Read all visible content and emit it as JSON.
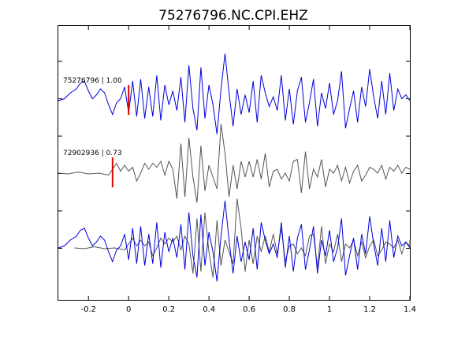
{
  "chart_data": {
    "type": "line",
    "title": "75276796.NC.CPI.EHZ",
    "xlabel": "",
    "ylabel": "",
    "xlim": [
      -0.35,
      1.4
    ],
    "xticks": [
      "-0.2",
      "0",
      "0.2",
      "0.4",
      "0.6",
      "0.8",
      "1",
      "1.2",
      "1.4"
    ],
    "xtick_values": [
      -0.2,
      0,
      0.2,
      0.4,
      0.6,
      0.8,
      1.0,
      1.2,
      1.4
    ],
    "ytick_count": 6,
    "grid": false,
    "colors": {
      "primary": "#0000dd",
      "secondary": "#555555",
      "pick": "#dd0000"
    },
    "traces": [
      {
        "label": "75276796 | 1.00",
        "pick_time": 0.0,
        "baseline": 128,
        "color": "#0000dd",
        "x": [
          -0.35,
          -0.32,
          -0.29,
          -0.26,
          -0.24,
          -0.22,
          -0.2,
          -0.18,
          -0.16,
          -0.14,
          -0.12,
          -0.1,
          -0.08,
          -0.06,
          -0.04,
          -0.02,
          0.0,
          0.02,
          0.04,
          0.06,
          0.08,
          0.1,
          0.12,
          0.14,
          0.16,
          0.18,
          0.2,
          0.22,
          0.24,
          0.26,
          0.28,
          0.3,
          0.32,
          0.34,
          0.36,
          0.38,
          0.4,
          0.42,
          0.44,
          0.46,
          0.48,
          0.5,
          0.52,
          0.54,
          0.56,
          0.58,
          0.6,
          0.62,
          0.64,
          0.66,
          0.68,
          0.7,
          0.72,
          0.74,
          0.76,
          0.78,
          0.8,
          0.82,
          0.84,
          0.86,
          0.88,
          0.9,
          0.92,
          0.94,
          0.96,
          0.98,
          1.0,
          1.02,
          1.04,
          1.06,
          1.08,
          1.1,
          1.12,
          1.14,
          1.16,
          1.18,
          1.2,
          1.22,
          1.24,
          1.26,
          1.28,
          1.3,
          1.32,
          1.34,
          1.36,
          1.38,
          1.4
        ],
        "y": [
          0.0,
          0.05,
          0.2,
          0.3,
          0.45,
          0.5,
          0.25,
          0.05,
          0.15,
          0.3,
          0.2,
          -0.1,
          -0.35,
          -0.05,
          0.05,
          0.35,
          -0.3,
          0.5,
          -0.4,
          0.55,
          -0.45,
          0.35,
          -0.4,
          0.65,
          -0.5,
          0.4,
          -0.1,
          0.25,
          -0.25,
          0.6,
          -0.55,
          0.9,
          -0.2,
          -0.75,
          0.85,
          -0.45,
          0.4,
          -0.1,
          -0.85,
          0.3,
          1.2,
          0.2,
          -0.65,
          0.3,
          -0.35,
          0.15,
          -0.3,
          0.5,
          -0.55,
          0.65,
          0.2,
          -0.15,
          0.1,
          -0.25,
          0.65,
          -0.5,
          0.3,
          -0.6,
          0.25,
          0.6,
          -0.55,
          -0.05,
          0.55,
          -0.65,
          0.2,
          -0.2,
          0.45,
          -0.35,
          0.0,
          0.75,
          -0.7,
          -0.2,
          0.25,
          -0.55,
          0.35,
          -0.15,
          0.8,
          0.1,
          -0.45,
          0.5,
          -0.35,
          0.7,
          -0.25,
          0.3,
          0.05,
          0.15,
          0.0
        ]
      },
      {
        "label": "72902936 | 0.73",
        "pick_time": -0.08,
        "baseline": 220,
        "color": "#555555",
        "x": [
          -0.35,
          -0.3,
          -0.25,
          -0.2,
          -0.15,
          -0.1,
          -0.08,
          -0.06,
          -0.04,
          -0.02,
          0.0,
          0.02,
          0.04,
          0.06,
          0.08,
          0.1,
          0.12,
          0.14,
          0.16,
          0.18,
          0.2,
          0.22,
          0.24,
          0.26,
          0.28,
          0.3,
          0.32,
          0.34,
          0.36,
          0.38,
          0.4,
          0.42,
          0.44,
          0.46,
          0.48,
          0.5,
          0.52,
          0.54,
          0.56,
          0.58,
          0.6,
          0.62,
          0.64,
          0.66,
          0.68,
          0.7,
          0.72,
          0.74,
          0.76,
          0.78,
          0.8,
          0.82,
          0.84,
          0.86,
          0.88,
          0.9,
          0.92,
          0.94,
          0.96,
          0.98,
          1.0,
          1.02,
          1.04,
          1.06,
          1.08,
          1.1,
          1.12,
          1.14,
          1.16,
          1.18,
          1.2,
          1.22,
          1.24,
          1.26,
          1.28,
          1.3,
          1.32,
          1.34,
          1.36,
          1.38,
          1.4
        ],
        "y": [
          0.0,
          -0.02,
          0.03,
          -0.02,
          0.0,
          -0.05,
          0.1,
          0.25,
          0.05,
          0.2,
          0.05,
          0.15,
          -0.2,
          0.0,
          0.25,
          0.1,
          0.25,
          0.15,
          0.3,
          -0.05,
          0.3,
          0.1,
          -0.65,
          0.75,
          -0.6,
          0.9,
          -0.1,
          -0.75,
          0.7,
          -0.45,
          0.2,
          -0.1,
          -0.4,
          1.25,
          0.5,
          -0.6,
          0.2,
          -0.4,
          0.3,
          -0.1,
          0.3,
          -0.1,
          0.35,
          -0.15,
          0.5,
          -0.35,
          0.05,
          0.1,
          -0.15,
          0.0,
          -0.2,
          0.3,
          0.35,
          -0.5,
          0.55,
          -0.4,
          0.1,
          -0.1,
          0.35,
          -0.35,
          0.1,
          0.0,
          0.2,
          -0.2,
          0.15,
          -0.25,
          0.05,
          0.2,
          -0.2,
          -0.05,
          0.15,
          0.1,
          0.0,
          0.2,
          -0.15,
          0.15,
          0.05,
          0.2,
          0.0,
          0.15,
          0.1
        ]
      }
    ],
    "overlay_baseline": 315
  }
}
